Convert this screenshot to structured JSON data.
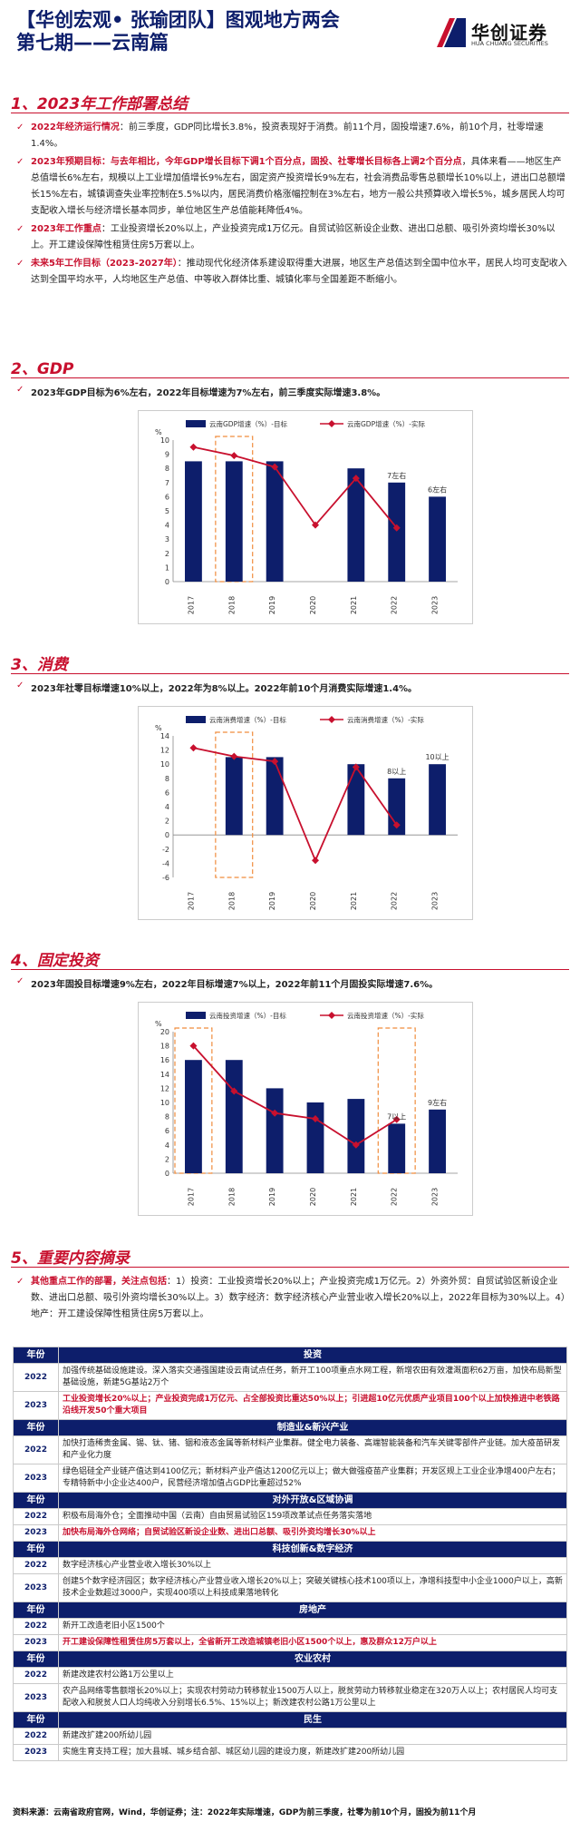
{
  "header": {
    "title_line1": "【华创宏观• 张瑜团队】图观地方两会",
    "title_line2": "第七期——云南篇",
    "logo_cn": "华创证券",
    "logo_en": "HUA CHUANG SECURITIES",
    "brand_color": "#0d1e6b",
    "accent_color": "#c8102e"
  },
  "sections": {
    "s1": "1、2023年工作部署总结",
    "s2": "2、GDP",
    "s3": "3、消费",
    "s4": "4、固定投资",
    "s5": "5、重要内容摘录"
  },
  "summary": [
    {
      "label": "2022年经济运行情况",
      "text": "：前三季度，GDP同比增长3.8%，投资表现好于消费。前11个月，固投增速7.6%，前10个月，社零增速1.4%。"
    },
    {
      "label": "2023年预期目标：与去年相比，今年GDP增长目标下调1个百分点，固投、社零增长目标各上调2个百分点",
      "text": "，具体来看——地区生产总值增长6%左右，规模以上工业增加值增长9%左右，固定资产投资增长9%左右，社会消费品零售总额增长10%以上，进出口总额增长15%左右，城镇调查失业率控制在5.5%以内，居民消费价格涨幅控制在3%左右，地方一般公共预算收入增长5%，城乡居民人均可支配收入增长与经济增长基本同步，单位地区生产总值能耗降低4%。"
    },
    {
      "label": "2023年工作重点",
      "text": "：工业投资增长20%以上，产业投资完成1万亿元。自贸试验区新设企业数、进出口总额、吸引外资均增长30%以上。开工建设保障性租赁住房5万套以上。"
    },
    {
      "label": "未来5年工作目标（2023-2027年）",
      "text": "：推动现代化经济体系建设取得重大进展，地区生产总值达到全国中位水平，居民人均可支配收入达到全国平均水平，人均地区生产总值、中等收入群体比重、城镇化率与全国差距不断缩小。"
    }
  ],
  "notes": {
    "gdp": "2023年GDP目标为6%左右，2022年目标增速为7%左右，前三季度实际增速3.8%。",
    "consumption": "2023年社零目标增速10%以上，2022年为8%以上。2022年前10个月消费实际增速1.4%。",
    "investment": "2023年固投目标增速9%左右，2022年目标增速7%以上，2022年前11个月固投实际增速7.6%。"
  },
  "chart_data": [
    {
      "type": "bar",
      "ylabel": "%",
      "categories": [
        "2017",
        "2018",
        "2019",
        "2020",
        "2021",
        "2022",
        "2023"
      ],
      "series": [
        {
          "name": "云南GDP增速（%）-目标",
          "values": [
            8.5,
            8.5,
            8.5,
            null,
            8,
            7,
            6
          ],
          "color": "#0d1e6b"
        },
        {
          "name": "云南GDP增速（%）-实际",
          "values": [
            9.5,
            8.9,
            8.1,
            4.0,
            7.3,
            3.8,
            null
          ],
          "color": "#c8102e"
        }
      ],
      "annotations": [
        {
          "category": "2022",
          "text": "7左右"
        },
        {
          "category": "2023",
          "text": "6左右"
        }
      ],
      "highlight": [
        "2018"
      ],
      "ylim": [
        0,
        10
      ],
      "yticks": [
        0,
        1,
        2,
        3,
        4,
        5,
        6,
        7,
        8,
        9,
        10
      ]
    },
    {
      "type": "bar",
      "ylabel": "%",
      "categories": [
        "2017",
        "2018",
        "2019",
        "2020",
        "2021",
        "2022",
        "2023"
      ],
      "series": [
        {
          "name": "云南消费增速（%）-目标",
          "values": [
            null,
            11,
            11,
            null,
            10,
            8,
            10
          ],
          "color": "#0d1e6b"
        },
        {
          "name": "云南消费增速（%）-实际",
          "values": [
            12.3,
            11.1,
            10.4,
            -3.6,
            9.6,
            1.4,
            null
          ],
          "color": "#c8102e"
        }
      ],
      "annotations": [
        {
          "category": "2022",
          "text": "8以上"
        },
        {
          "category": "2023",
          "text": "10以上"
        }
      ],
      "highlight": [
        "2018"
      ],
      "ylim": [
        -6,
        14
      ],
      "yticks": [
        -6,
        -4,
        -2,
        0,
        2,
        4,
        6,
        8,
        10,
        12,
        14
      ]
    },
    {
      "type": "bar",
      "ylabel": "%",
      "categories": [
        "2017",
        "2018",
        "2019",
        "2020",
        "2021",
        "2022",
        "2023"
      ],
      "series": [
        {
          "name": "云南投资增速（%）-目标",
          "values": [
            16,
            16,
            12,
            10,
            10.5,
            7,
            9
          ],
          "color": "#0d1e6b"
        },
        {
          "name": "云南投资增速（%）-实际",
          "values": [
            18,
            11.6,
            8.5,
            7.7,
            4.0,
            7.6,
            null
          ],
          "color": "#c8102e"
        }
      ],
      "annotations": [
        {
          "category": "2022",
          "text": "7以上"
        },
        {
          "category": "2023",
          "text": "9左右"
        }
      ],
      "highlight": [
        "2017",
        "2022"
      ],
      "ylim": [
        0,
        20
      ],
      "yticks": [
        0,
        2,
        4,
        6,
        8,
        10,
        12,
        14,
        16,
        18,
        20
      ]
    }
  ],
  "excerpt_intro": {
    "label": "其他重点工作的部署，关注点包括",
    "text": "：1）投资：工业投资增长20%以上；产业投资完成1万亿元。2）外资外贸：自贸试验区新设企业数、进出口总额、吸引外资均增长30%以上。3）数字经济：数字经济核心产业营业收入增长20%以上，2022年目标为30%以上。4）地产：开工建设保障性租赁住房5万套以上。"
  },
  "table": {
    "year_header": "年份",
    "categories": [
      {
        "name": "投资",
        "rows": [
          {
            "year": "2022",
            "text": "加强传统基础设施建设。深入落实交通强国建设云南试点任务，新开工100项重点水网工程，新增农田有效灌溉面积62万亩，加快布局新型基础设施，新建5G基站2万个",
            "hl": false
          },
          {
            "year": "2023",
            "text": "工业投资增长20%以上；产业投资完成1万亿元、占全部投资比重达50%以上；引进超10亿元优质产业项目100个以上加快推进中老铁路沿线开发50个重大项目",
            "hl": true
          }
        ]
      },
      {
        "name": "制造业&新兴产业",
        "rows": [
          {
            "year": "2022",
            "text": "加快打造稀贵金属、锡、钛、锗、铟和液态金属等新材料产业集群。健全电力装备、高端智能装备和汽车关键零部件产业链。加大疫苗研发和产业化力度",
            "hl": false
          },
          {
            "year": "2023",
            "text": "绿色铝硅全产业链产值达到4100亿元；新材料产业产值达1200亿元以上；做大做强疫苗产业集群；开发区规上工业企业净增400户左右；专精特新中小企业达400户，民营经济增加值占GDP比重超过52%",
            "hl": false
          }
        ]
      },
      {
        "name": "对外开放&区域协调",
        "rows": [
          {
            "year": "2022",
            "text": "积极布局海外仓；全面推动中国（云南）自由贸易试验区159项改革试点任务落实落地",
            "hl": false
          },
          {
            "year": "2023",
            "text": "加快布局海外仓网络；自贸试验区新设企业数、进出口总额、吸引外资均增长30%以上",
            "hl": true
          }
        ]
      },
      {
        "name": "科技创新&数字经济",
        "rows": [
          {
            "year": "2022",
            "text": "数字经济核心产业营业收入增长30%以上",
            "hl": false
          },
          {
            "year": "2023",
            "text": "创建5个数字经济园区；数字经济核心产业营业收入增长20%以上；突破关键核心技术100项以上，净增科技型中小企业1000户以上，高新技术企业数超过3000户，实现400项以上科技成果落地转化",
            "hl": false
          }
        ]
      },
      {
        "name": "房地产",
        "rows": [
          {
            "year": "2022",
            "text": "新开工改造老旧小区1500个",
            "hl": false
          },
          {
            "year": "2023",
            "text": "开工建设保障性租赁住房5万套以上，全省新开工改造城镇老旧小区1500个以上，惠及群众12万户以上",
            "hl": true
          }
        ]
      },
      {
        "name": "农业农村",
        "rows": [
          {
            "year": "2022",
            "text": "新建改建农村公路1万公里以上",
            "hl": false
          },
          {
            "year": "2023",
            "text": "农产品网络零售额增长20%以上；实现农村劳动力转移就业1500万人以上，脱贫劳动力转移就业稳定在320万人以上；农村居民人均可支配收入和脱贫人口人均纯收入分别增长6.5%、15%以上；新改建农村公路1万公里以上",
            "hl": false
          }
        ]
      },
      {
        "name": "民生",
        "rows": [
          {
            "year": "2022",
            "text": "新建改扩建200所幼儿园",
            "hl": false
          },
          {
            "year": "2023",
            "text": "实施生育支持工程；加大县城、城乡结合部、城区幼儿园的建设力度，新建改扩建200所幼儿园",
            "hl": false
          }
        ]
      }
    ]
  },
  "footer": "资料来源：云南省政府官网，Wind，华创证券；注：2022年实际增速，GDP为前三季度，社零为前10个月，固投为前11个月"
}
